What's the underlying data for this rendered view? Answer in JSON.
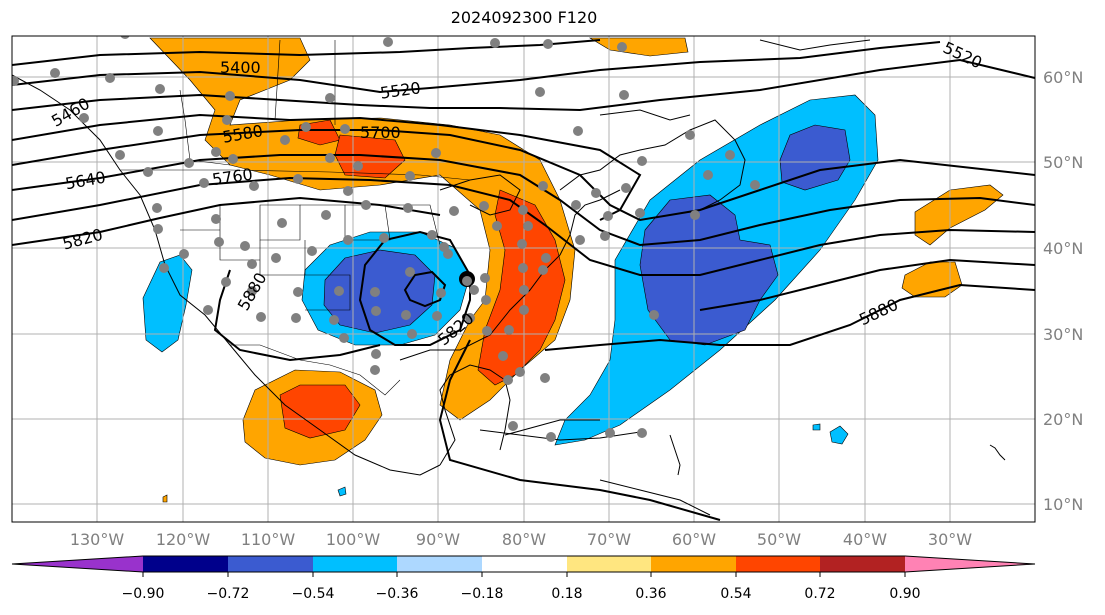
{
  "title": "2024092300 F120",
  "map": {
    "longitude_labels": [
      "130°W",
      "120°W",
      "110°W",
      "100°W",
      "90°W",
      "80°W",
      "70°W",
      "60°W",
      "50°W",
      "40°W",
      "30°W"
    ],
    "latitude_labels": [
      "10°N",
      "20°N",
      "30°N",
      "40°N",
      "50°N",
      "60°N"
    ],
    "contour_labels": [
      "5400",
      "5520",
      "5520",
      "5580",
      "5640",
      "5700",
      "5760",
      "5820",
      "5880",
      "5880",
      "5820",
      "5460"
    ]
  },
  "colorbar": {
    "tick_labels": [
      "−0.90",
      "−0.72",
      "−0.54",
      "−0.36",
      "−0.18",
      "0.18",
      "0.36",
      "0.54",
      "0.72",
      "0.90"
    ],
    "colors": [
      "#9932cc",
      "#00008b",
      "#3b5bd0",
      "#00bfff",
      "#add8ff",
      "#ffffff",
      "#ffe680",
      "#ffa500",
      "#ff4500",
      "#b22222",
      "#ff82b4"
    ]
  },
  "palette": {
    "neg_light": "#00bfff",
    "neg_mid": "#3b5bd0",
    "pos_light": "#ffa500",
    "pos_mid": "#ff4500",
    "station": "#808080",
    "grid": "#b0b0b0"
  }
}
